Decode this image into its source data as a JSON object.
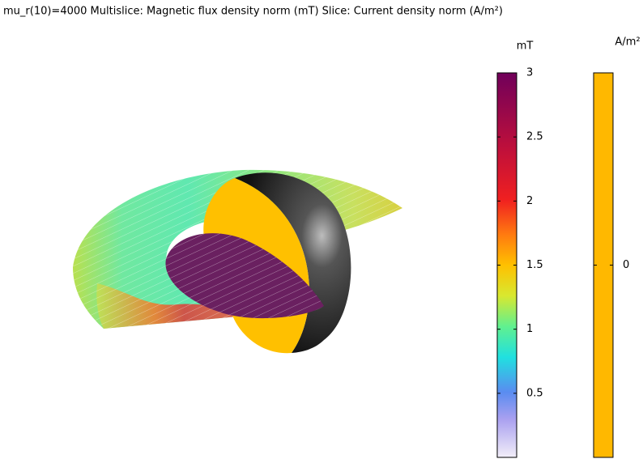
{
  "header": {
    "title": "mu_r(10)=4000  Multislice: Magnetic flux density norm (mT)  Slice: Current density norm (A/m²)"
  },
  "colorbars": [
    {
      "unit": "mT",
      "range": [
        0,
        3
      ],
      "ticks": [
        0.5,
        1,
        1.5,
        2,
        2.5,
        3
      ]
    },
    {
      "unit": "A/m²",
      "ticks": [
        0
      ]
    }
  ]
}
